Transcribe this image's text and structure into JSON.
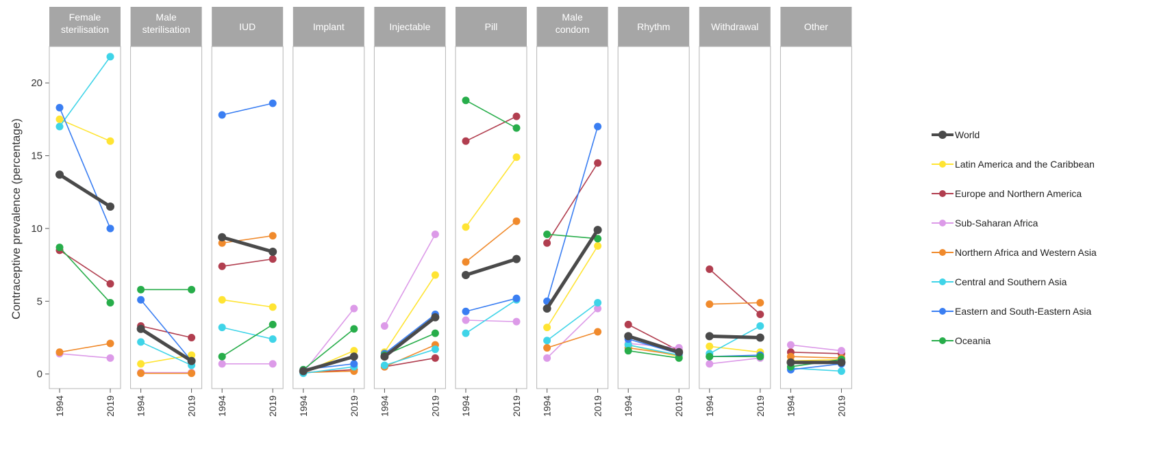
{
  "chart_data": {
    "type": "line",
    "ylabel": "Contraceptive prevalence (percentage)",
    "ylim": [
      -1,
      22.5
    ],
    "yticks": [
      0,
      5,
      10,
      15,
      20
    ],
    "x": [
      "1994",
      "2019"
    ],
    "panels": [
      {
        "name": "Female sterilisation",
        "label_lines": [
          "Female",
          "sterilisation"
        ]
      },
      {
        "name": "Male sterilisation",
        "label_lines": [
          "Male",
          "sterilisation"
        ]
      },
      {
        "name": "IUD",
        "label_lines": [
          "IUD"
        ]
      },
      {
        "name": "Implant",
        "label_lines": [
          "Implant"
        ]
      },
      {
        "name": "Injectable",
        "label_lines": [
          "Injectable"
        ]
      },
      {
        "name": "Pill",
        "label_lines": [
          "Pill"
        ]
      },
      {
        "name": "Male condom",
        "label_lines": [
          "Male",
          "condom"
        ]
      },
      {
        "name": "Rhythm",
        "label_lines": [
          "Rhythm"
        ]
      },
      {
        "name": "Withdrawal",
        "label_lines": [
          "Withdrawal"
        ]
      },
      {
        "name": "Other",
        "label_lines": [
          "Other"
        ]
      }
    ],
    "series": [
      {
        "name": "World",
        "color": "#4a4a4a",
        "values": [
          [
            13.7,
            11.5
          ],
          [
            3.1,
            0.9
          ],
          [
            9.4,
            8.4
          ],
          [
            0.2,
            1.2
          ],
          [
            1.2,
            3.9
          ],
          [
            6.8,
            7.9
          ],
          [
            4.5,
            9.9
          ],
          [
            2.6,
            1.5
          ],
          [
            2.6,
            2.5
          ],
          [
            0.8,
            0.8
          ]
        ]
      },
      {
        "name": "Latin America and the Caribbean",
        "color": "#ffe433",
        "values": [
          [
            17.5,
            16.0
          ],
          [
            0.7,
            1.3
          ],
          [
            5.1,
            4.6
          ],
          [
            0.1,
            1.6
          ],
          [
            1.5,
            6.8
          ],
          [
            10.1,
            14.9
          ],
          [
            3.2,
            8.8
          ],
          [
            2.0,
            1.2
          ],
          [
            1.9,
            1.5
          ],
          [
            0.9,
            1.0
          ]
        ]
      },
      {
        "name": "Europe and Northern America",
        "color": "#b13e4f",
        "values": [
          [
            8.5,
            6.2
          ],
          [
            3.3,
            2.5
          ],
          [
            7.4,
            7.9
          ],
          [
            0.1,
            0.3
          ],
          [
            0.5,
            1.1
          ],
          [
            16.0,
            17.7
          ],
          [
            9.0,
            14.5
          ],
          [
            3.4,
            1.6
          ],
          [
            7.2,
            4.1
          ],
          [
            1.5,
            1.4
          ]
        ]
      },
      {
        "name": "Sub-Saharan Africa",
        "color": "#dc9ae8",
        "values": [
          [
            1.4,
            1.1
          ],
          [
            0.1,
            0.1
          ],
          [
            0.7,
            0.7
          ],
          [
            0.1,
            4.5
          ],
          [
            3.3,
            9.6
          ],
          [
            3.7,
            3.6
          ],
          [
            1.1,
            4.5
          ],
          [
            2.1,
            1.8
          ],
          [
            0.7,
            1.1
          ],
          [
            2.0,
            1.6
          ]
        ]
      },
      {
        "name": "Northern Africa and Western Asia",
        "color": "#f08a2c",
        "values": [
          [
            1.5,
            2.1
          ],
          [
            0.05,
            0.05
          ],
          [
            9.0,
            9.5
          ],
          [
            0.1,
            0.2
          ],
          [
            0.5,
            2.0
          ],
          [
            7.7,
            10.5
          ],
          [
            1.8,
            2.9
          ],
          [
            1.8,
            1.3
          ],
          [
            4.8,
            4.9
          ],
          [
            1.2,
            1.1
          ]
        ]
      },
      {
        "name": "Central and Southern Asia",
        "color": "#3fd4e8",
        "values": [
          [
            17.0,
            21.8
          ],
          [
            2.2,
            0.6
          ],
          [
            3.2,
            2.4
          ],
          [
            0.05,
            0.5
          ],
          [
            0.6,
            1.7
          ],
          [
            2.8,
            5.1
          ],
          [
            2.3,
            4.9
          ],
          [
            2.0,
            1.3
          ],
          [
            1.4,
            3.3
          ],
          [
            0.4,
            0.2
          ]
        ]
      },
      {
        "name": "Eastern and South-Eastern Asia",
        "color": "#3a7ef2",
        "values": [
          [
            18.3,
            10.0
          ],
          [
            5.1,
            0.9
          ],
          [
            17.8,
            18.6
          ],
          [
            0.3,
            0.7
          ],
          [
            1.4,
            4.1
          ],
          [
            4.3,
            5.2
          ],
          [
            5.0,
            17.0
          ],
          [
            2.4,
            1.4
          ],
          [
            1.2,
            1.3
          ],
          [
            0.3,
            0.7
          ]
        ]
      },
      {
        "name": "Oceania",
        "color": "#27ad4a",
        "values": [
          [
            8.7,
            4.9
          ],
          [
            5.8,
            5.8
          ],
          [
            1.2,
            3.4
          ],
          [
            0.3,
            3.1
          ],
          [
            1.3,
            2.8
          ],
          [
            18.8,
            16.9
          ],
          [
            9.6,
            9.3
          ],
          [
            1.6,
            1.1
          ],
          [
            1.2,
            1.2
          ],
          [
            0.5,
            1.0
          ]
        ]
      }
    ]
  }
}
